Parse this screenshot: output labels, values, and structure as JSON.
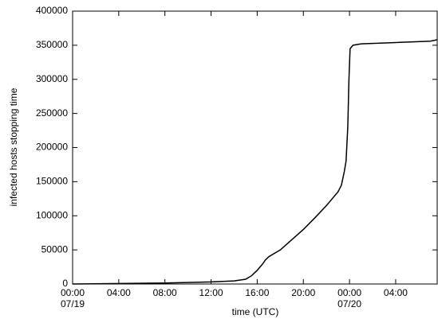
{
  "chart_data": {
    "type": "line",
    "y_label": "infected hosts stopping time",
    "x_label": "time (UTC)",
    "xlim": [
      0,
      31.6
    ],
    "ylim": [
      0,
      400000
    ],
    "yticks": [
      0,
      50000,
      100000,
      150000,
      200000,
      250000,
      300000,
      350000,
      400000
    ],
    "xticks": [
      {
        "value": 0,
        "label": "00:00"
      },
      {
        "value": 4,
        "label": "04:00"
      },
      {
        "value": 8,
        "label": "08:00"
      },
      {
        "value": 12,
        "label": "12:00"
      },
      {
        "value": 16,
        "label": "16:00"
      },
      {
        "value": 20,
        "label": "20:00"
      },
      {
        "value": 24,
        "label": "00:00"
      },
      {
        "value": 28,
        "label": "04:00"
      }
    ],
    "xtick_dates": [
      {
        "value": 0,
        "label": "07/19"
      },
      {
        "value": 24,
        "label": "07/20"
      }
    ],
    "grid": false,
    "series": [
      {
        "color": "#000000",
        "x": [
          0,
          8,
          12,
          14,
          15,
          15.5,
          16,
          16.5,
          16.7,
          17,
          18,
          19,
          20,
          21,
          22,
          22.5,
          23,
          23.3,
          23.55,
          23.7,
          23.85,
          23.95,
          24.05,
          24.3,
          25,
          28,
          31,
          31.6
        ],
        "values": [
          0,
          1500,
          3000,
          4500,
          7000,
          12000,
          20000,
          30000,
          35000,
          40000,
          50000,
          65000,
          80000,
          97000,
          115000,
          125000,
          135000,
          145000,
          165000,
          180000,
          230000,
          300000,
          345000,
          350000,
          352000,
          354000,
          356000,
          358000
        ]
      }
    ]
  }
}
